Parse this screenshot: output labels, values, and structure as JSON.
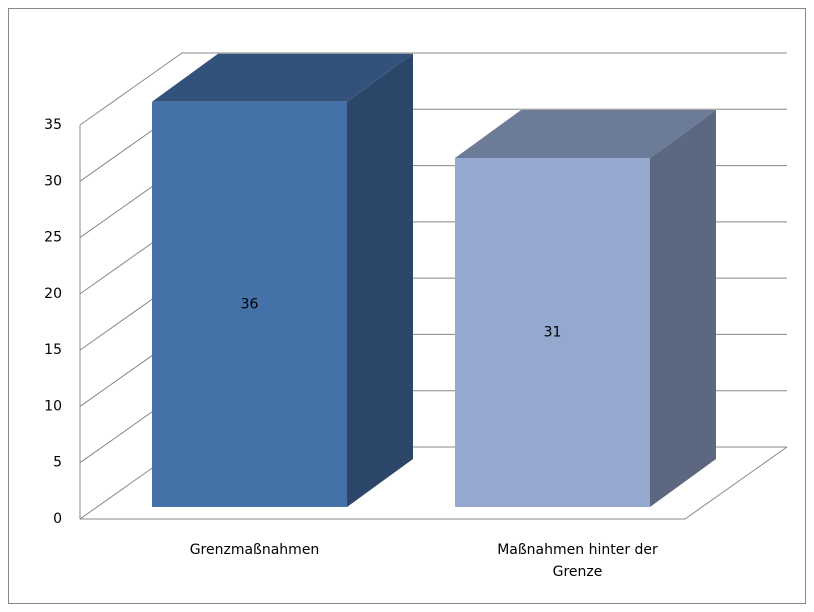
{
  "chart_data": {
    "type": "bar3d",
    "categories": [
      "Grenzmaßnahmen",
      "Maßnahmen hinter der Grenze"
    ],
    "values": [
      36,
      31
    ],
    "colors": [
      "#4571a9",
      "#94a8d0"
    ],
    "ylim": [
      0,
      35
    ],
    "yticks": [
      0,
      5,
      10,
      15,
      20,
      25,
      30,
      35
    ],
    "grid": true
  }
}
